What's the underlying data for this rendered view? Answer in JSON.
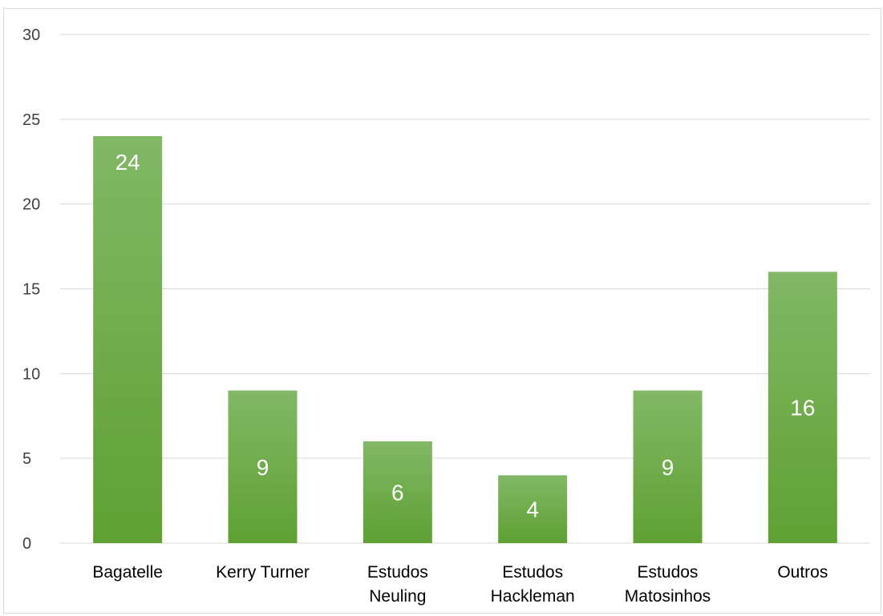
{
  "chart_data": {
    "type": "bar",
    "categories": [
      "Bagatelle",
      "Kerry Turner",
      "Estudos Neuling",
      "Estudos Hackleman",
      "Estudos Matosinhos",
      "Outros"
    ],
    "category_lines": [
      [
        "Bagatelle"
      ],
      [
        "Kerry Turner"
      ],
      [
        "Estudos",
        "Neuling"
      ],
      [
        "Estudos",
        "Hackleman"
      ],
      [
        "Estudos",
        "Matosinhos"
      ],
      [
        "Outros"
      ]
    ],
    "values": [
      24,
      9,
      6,
      4,
      9,
      16
    ],
    "data_labels": [
      "24",
      "9",
      "6",
      "4",
      "9",
      "16"
    ],
    "yticks": [
      "0",
      "5",
      "10",
      "15",
      "20",
      "25",
      "30"
    ],
    "ylim": [
      0,
      30
    ],
    "title": "",
    "xlabel": "",
    "ylabel": "",
    "grid": true,
    "legend": "none",
    "colors": {
      "bar_top": "#82b866",
      "bar_bottom": "#5fa033",
      "gridline": "#d9d9d9",
      "axis_text": "#404040",
      "data_label": "#ffffff"
    }
  }
}
